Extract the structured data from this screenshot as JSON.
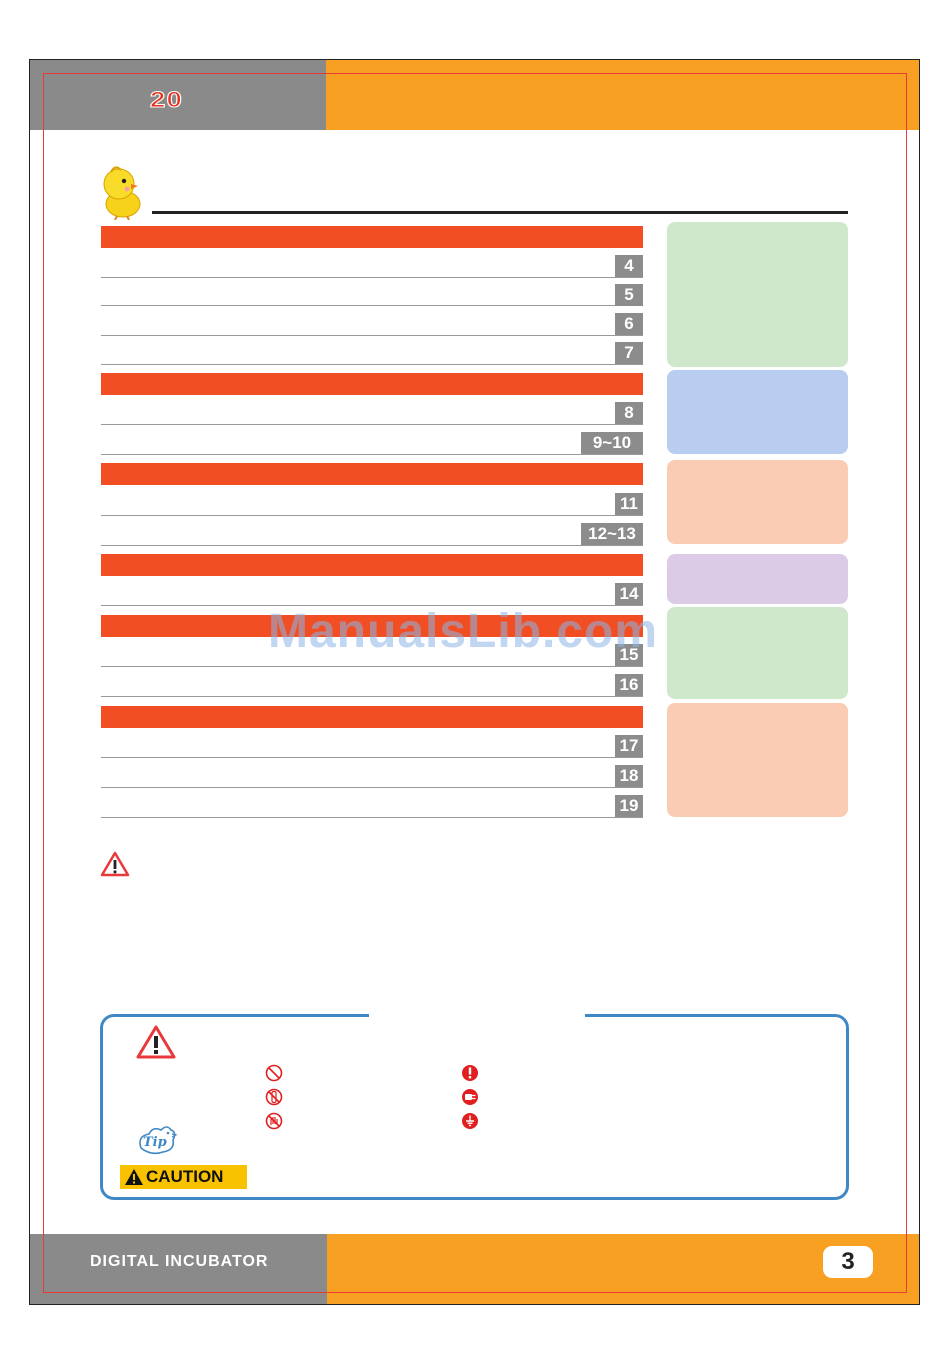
{
  "header": {
    "logo_text": "20"
  },
  "footer": {
    "product_name": "DIGITAL INCUBATOR",
    "page_number": "3"
  },
  "toc": {
    "groups": [
      {
        "entries": [
          {
            "page": "4"
          },
          {
            "page": "5"
          },
          {
            "page": "6"
          },
          {
            "page": "7"
          }
        ]
      },
      {
        "entries": [
          {
            "page": "8"
          },
          {
            "page": "9~10"
          }
        ]
      },
      {
        "entries": [
          {
            "page": "11"
          },
          {
            "page": "12~13"
          }
        ]
      },
      {
        "entries": [
          {
            "page": "14"
          }
        ]
      },
      {
        "entries": [
          {
            "page": "15"
          },
          {
            "page": "16"
          }
        ]
      },
      {
        "entries": [
          {
            "page": "17"
          },
          {
            "page": "18"
          },
          {
            "page": "19"
          }
        ]
      }
    ],
    "side_tab_colors": [
      "#cfe8cc",
      "#b9cdf0",
      "#f9ccb3",
      "#dccbe6",
      "#cfe8cc",
      "#f9ccb3"
    ]
  },
  "watermark": {
    "text": "ManualsLib.com"
  },
  "legend": {
    "symbols": [
      "prohibited-icon",
      "do-not-disassemble-icon",
      "do-not-touch-icon",
      "mandatory-icon",
      "unplug-icon",
      "ground-icon"
    ],
    "tip_label": "Tip",
    "caution_label": "CAUTION"
  },
  "colors": {
    "accent_orange": "#f7a021",
    "section_red": "#f14e23",
    "legend_border": "#3f88c5",
    "caution_yellow": "#f8c200"
  }
}
